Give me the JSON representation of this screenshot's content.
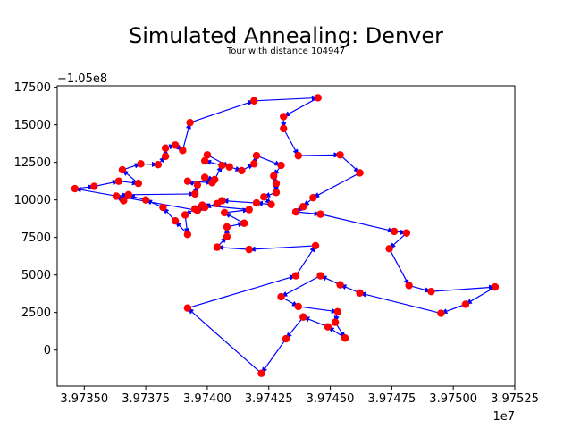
{
  "chart_data": {
    "type": "line",
    "title": "Simulated Annealing: Denver",
    "subtitle": "Tour with distance 104947",
    "xlabel": "",
    "ylabel": "",
    "x_offset_label": "1e7",
    "y_offset_label": "−1.05e8",
    "x_scale": 10000000.0,
    "y_offset": -105000000,
    "xlim": [
      3.97339,
      3.97525
    ],
    "ylim": [
      -2400,
      17600
    ],
    "x_ticks": [
      3.9735,
      3.97375,
      3.974,
      3.97425,
      3.9745,
      3.97475,
      3.975,
      3.97525
    ],
    "x_tick_labels": [
      "3.97350",
      "3.97375",
      "3.97400",
      "3.97425",
      "3.97450",
      "3.97475",
      "3.97500",
      "3.97525"
    ],
    "y_ticks": [
      0,
      2500,
      5000,
      7500,
      10000,
      12500,
      15000,
      17500
    ],
    "y_tick_labels": [
      "0",
      "2500",
      "5000",
      "7500",
      "10000",
      "12500",
      "15000",
      "17500"
    ],
    "grid": false,
    "colors": {
      "line": "#0000ff",
      "marker": "#ff0000",
      "arrow": "#0000ff"
    },
    "tour_note": "values in scaled display units (x ×1e7, y + −1.05e8)",
    "tour": [
      [
        3.973462,
        10750
      ],
      [
        3.97354,
        10900
      ],
      [
        3.97364,
        11250
      ],
      [
        3.97372,
        11100
      ],
      [
        3.973655,
        12000
      ],
      [
        3.97373,
        12400
      ],
      [
        3.9738,
        12350
      ],
      [
        3.97383,
        12900
      ],
      [
        3.97383,
        13450
      ],
      [
        3.97387,
        13650
      ],
      [
        3.9739,
        13300
      ],
      [
        3.97393,
        15150
      ],
      [
        3.97419,
        16600
      ],
      [
        3.97445,
        16800
      ],
      [
        3.97431,
        15550
      ],
      [
        3.97431,
        14750
      ],
      [
        3.97437,
        12950
      ],
      [
        3.97454,
        13000
      ],
      [
        3.97462,
        11800
      ],
      [
        3.97443,
        10150
      ],
      [
        3.97439,
        9550
      ],
      [
        3.97436,
        9200
      ],
      [
        3.97446,
        9050
      ],
      [
        3.97476,
        7900
      ],
      [
        3.97481,
        7800
      ],
      [
        3.97474,
        6750
      ],
      [
        3.97482,
        4300
      ],
      [
        3.97491,
        3900
      ],
      [
        3.97517,
        4200
      ],
      [
        3.97505,
        3050
      ],
      [
        3.97495,
        2450
      ],
      [
        3.97462,
        3800
      ],
      [
        3.97454,
        4350
      ],
      [
        3.97446,
        4950
      ],
      [
        3.9743,
        3550
      ],
      [
        3.97437,
        2900
      ],
      [
        3.97453,
        2550
      ],
      [
        3.97452,
        1850
      ],
      [
        3.97456,
        800
      ],
      [
        3.97449,
        1550
      ],
      [
        3.97439,
        2200
      ],
      [
        3.97432,
        750
      ],
      [
        3.97422,
        -1550
      ],
      [
        3.97392,
        2800
      ],
      [
        3.97436,
        4950
      ],
      [
        3.97444,
        6950
      ],
      [
        3.97417,
        6700
      ],
      [
        3.97404,
        6850
      ],
      [
        3.97408,
        7550
      ],
      [
        3.97408,
        8200
      ],
      [
        3.97415,
        8450
      ],
      [
        3.97407,
        9150
      ],
      [
        3.97417,
        9350
      ],
      [
        3.97398,
        9650
      ],
      [
        3.97395,
        9400
      ],
      [
        3.97391,
        9000
      ],
      [
        3.97392,
        7700
      ],
      [
        3.97387,
        8600
      ],
      [
        3.97382,
        9500
      ],
      [
        3.97375,
        10000
      ],
      [
        3.97368,
        10300
      ],
      [
        3.97366,
        9950
      ],
      [
        3.97363,
        10250
      ],
      [
        3.97368,
        10350
      ],
      [
        3.97395,
        10400
      ],
      [
        3.97396,
        11000
      ],
      [
        3.97392,
        11250
      ],
      [
        3.97402,
        11150
      ],
      [
        3.97399,
        11500
      ],
      [
        3.97403,
        11350
      ],
      [
        3.97406,
        12300
      ],
      [
        3.97399,
        12600
      ],
      [
        3.974,
        13000
      ],
      [
        3.97409,
        12200
      ],
      [
        3.97414,
        11950
      ],
      [
        3.97419,
        12400
      ],
      [
        3.9742,
        12950
      ],
      [
        3.9743,
        12300
      ],
      [
        3.97427,
        11600
      ],
      [
        3.97428,
        11100
      ],
      [
        3.97428,
        10500
      ],
      [
        3.97423,
        10200
      ],
      [
        3.97426,
        9700
      ],
      [
        3.9742,
        9800
      ],
      [
        3.97406,
        9950
      ],
      [
        3.97404,
        9750
      ],
      [
        3.97399,
        9500
      ],
      [
        3.97396,
        9300
      ],
      [
        3.973462,
        10750
      ]
    ]
  }
}
